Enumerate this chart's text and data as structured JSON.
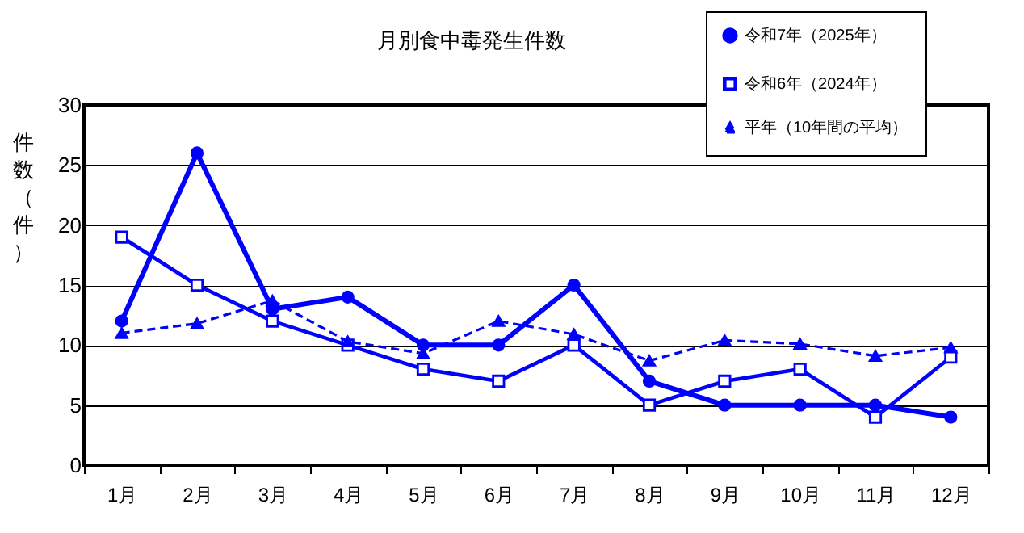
{
  "chart_data": {
    "type": "line",
    "title": "月別食中毒発生件数",
    "ylabel": "件数（件）",
    "categories": [
      "1月",
      "2月",
      "3月",
      "4月",
      "5月",
      "6月",
      "7月",
      "8月",
      "9月",
      "10月",
      "11月",
      "12月"
    ],
    "series": [
      {
        "name": "令和7年（2025年）",
        "color": "#0000ff",
        "marker": "circle",
        "line_style": "solid",
        "values": [
          12,
          26,
          13,
          14,
          10,
          10,
          15,
          7,
          5,
          5,
          5,
          4
        ]
      },
      {
        "name": "令和6年（2024年）",
        "color": "#0000ff",
        "marker": "square",
        "line_style": "solid",
        "values": [
          19,
          15,
          12,
          10,
          8,
          7,
          10,
          5,
          7,
          8,
          4,
          9
        ]
      },
      {
        "name": "平年（10年間の平均）",
        "color": "#0000ff",
        "marker": "triangle",
        "line_style": "dashed",
        "values": [
          11,
          11.8,
          13.7,
          10.3,
          9.3,
          12,
          10.9,
          8.7,
          10.4,
          10.1,
          9.1,
          9.8
        ]
      }
    ],
    "ylim": [
      0,
      30
    ],
    "yticks": [
      0,
      5,
      10,
      15,
      20,
      25,
      30
    ],
    "grid": "y",
    "legend": "top right"
  }
}
